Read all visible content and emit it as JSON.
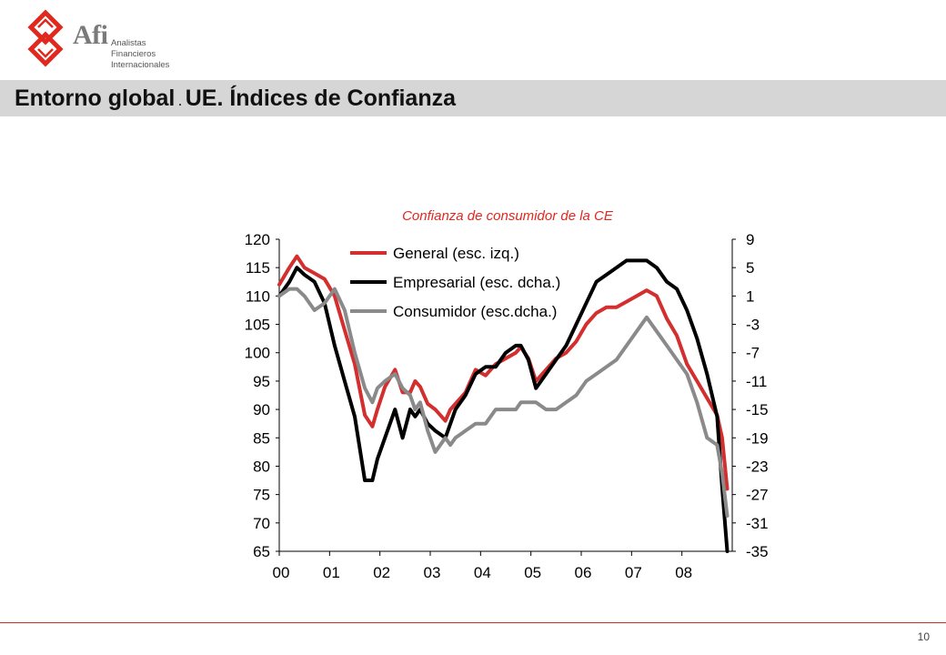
{
  "header": {
    "logo_name": "Afi",
    "logo_sub_1": "Analistas",
    "logo_sub_2": "Financieros",
    "logo_sub_3": "Internacionales",
    "title_left": "Entorno global",
    "title_sep": ".",
    "title_right": "UE. Índices de Confianza",
    "brand_color": "#e0281f"
  },
  "footer": {
    "page_number": "10"
  },
  "chart_data": {
    "type": "line",
    "title": "Confianza de consumidor de la CE",
    "x_ticks": [
      "00",
      "01",
      "02",
      "03",
      "04",
      "05",
      "06",
      "07",
      "08"
    ],
    "x_range": [
      2000.0,
      2009.0
    ],
    "ylim_left": [
      65,
      120
    ],
    "yticks_left": [
      120,
      115,
      110,
      105,
      100,
      95,
      90,
      85,
      80,
      75,
      70,
      65
    ],
    "ylim_right": [
      -35,
      9
    ],
    "yticks_right": [
      9,
      5,
      1,
      -3,
      -7,
      -11,
      -15,
      -19,
      -23,
      -27,
      -31,
      -35
    ],
    "legend_position": "top-left",
    "grid": false,
    "series": [
      {
        "name": "General (esc. izq.)",
        "axis": "left",
        "color": "#d32f2f",
        "x": [
          2000.0,
          2000.2,
          2000.35,
          2000.5,
          2000.7,
          2000.9,
          2001.1,
          2001.3,
          2001.5,
          2001.7,
          2001.85,
          2001.95,
          2002.1,
          2002.3,
          2002.45,
          2002.6,
          2002.7,
          2002.8,
          2002.95,
          2003.1,
          2003.3,
          2003.4,
          2003.5,
          2003.7,
          2003.9,
          2004.1,
          2004.3,
          2004.5,
          2004.7,
          2004.8,
          2004.95,
          2005.1,
          2005.3,
          2005.5,
          2005.7,
          2005.9,
          2006.1,
          2006.3,
          2006.5,
          2006.7,
          2006.9,
          2007.1,
          2007.3,
          2007.5,
          2007.7,
          2007.9,
          2008.1,
          2008.3,
          2008.5,
          2008.7,
          2008.8,
          2008.9
        ],
        "values": [
          112,
          115,
          117,
          115,
          114,
          113,
          110,
          104,
          98,
          89,
          87,
          90,
          94,
          97,
          93,
          93,
          95,
          94,
          91,
          90,
          88,
          90,
          91,
          93,
          97,
          96,
          98,
          99,
          100,
          101,
          99,
          95,
          97,
          99,
          100,
          102,
          105,
          107,
          108,
          108,
          109,
          110,
          111,
          110,
          106,
          103,
          98,
          95,
          92,
          89,
          85,
          76
        ]
      },
      {
        "name": "Empresarial (esc. dcha.)",
        "axis": "right",
        "color": "#000000",
        "x": [
          2000.0,
          2000.2,
          2000.35,
          2000.5,
          2000.7,
          2000.9,
          2001.1,
          2001.3,
          2001.5,
          2001.7,
          2001.85,
          2001.95,
          2002.1,
          2002.3,
          2002.45,
          2002.6,
          2002.7,
          2002.8,
          2002.95,
          2003.1,
          2003.3,
          2003.5,
          2003.7,
          2003.9,
          2004.1,
          2004.3,
          2004.5,
          2004.7,
          2004.8,
          2004.95,
          2005.1,
          2005.3,
          2005.5,
          2005.7,
          2005.9,
          2006.1,
          2006.3,
          2006.5,
          2006.7,
          2006.9,
          2007.1,
          2007.3,
          2007.5,
          2007.7,
          2007.9,
          2008.1,
          2008.3,
          2008.5,
          2008.7,
          2008.8,
          2008.9
        ],
        "values": [
          1,
          3,
          5,
          4,
          3,
          0,
          -6,
          -11,
          -16,
          -25,
          -25,
          -22,
          -19,
          -15,
          -19,
          -15,
          -16,
          -15,
          -17,
          -18,
          -19,
          -15,
          -13,
          -10,
          -9,
          -9,
          -7,
          -6,
          -6,
          -8,
          -12,
          -10,
          -8,
          -6,
          -3,
          0,
          3,
          4,
          5,
          6,
          6,
          6,
          5,
          3,
          2,
          -1,
          -5,
          -10,
          -16,
          -26,
          -35
        ]
      },
      {
        "name": "Consumidor (esc.dcha.)",
        "axis": "right",
        "color": "#8a8a8a",
        "x": [
          2000.0,
          2000.2,
          2000.35,
          2000.5,
          2000.7,
          2000.9,
          2001.1,
          2001.3,
          2001.5,
          2001.7,
          2001.85,
          2001.95,
          2002.1,
          2002.3,
          2002.45,
          2002.6,
          2002.7,
          2002.8,
          2002.95,
          2003.1,
          2003.3,
          2003.4,
          2003.5,
          2003.7,
          2003.9,
          2004.1,
          2004.3,
          2004.5,
          2004.7,
          2004.8,
          2004.95,
          2005.1,
          2005.3,
          2005.5,
          2005.7,
          2005.9,
          2006.1,
          2006.3,
          2006.5,
          2006.7,
          2006.9,
          2007.1,
          2007.3,
          2007.5,
          2007.7,
          2007.9,
          2008.1,
          2008.3,
          2008.5,
          2008.7,
          2008.8,
          2008.9
        ],
        "values": [
          1,
          2,
          2,
          1,
          -1,
          0,
          2,
          -1,
          -7,
          -12,
          -14,
          -12,
          -11,
          -10,
          -12,
          -13,
          -15,
          -14,
          -18,
          -21,
          -19,
          -20,
          -19,
          -18,
          -17,
          -17,
          -15,
          -15,
          -15,
          -14,
          -14,
          -14,
          -15,
          -15,
          -14,
          -13,
          -11,
          -10,
          -9,
          -8,
          -6,
          -4,
          -2,
          -4,
          -6,
          -8,
          -10,
          -14,
          -19,
          -20,
          -24,
          -30
        ]
      }
    ]
  }
}
